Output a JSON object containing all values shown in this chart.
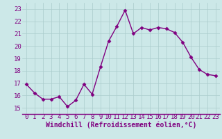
{
  "x": [
    0,
    1,
    2,
    3,
    4,
    5,
    6,
    7,
    8,
    9,
    10,
    11,
    12,
    13,
    14,
    15,
    16,
    17,
    18,
    19,
    20,
    21,
    22,
    23
  ],
  "y": [
    16.9,
    16.2,
    15.7,
    15.7,
    15.9,
    15.1,
    15.6,
    16.9,
    16.1,
    18.3,
    20.4,
    21.6,
    22.9,
    21.0,
    21.5,
    21.3,
    21.5,
    21.4,
    21.1,
    20.3,
    19.1,
    18.1,
    17.7,
    17.6
  ],
  "line_color": "#800080",
  "marker": "D",
  "marker_size": 2.5,
  "bg_color": "#cce8e8",
  "grid_color": "#aacccc",
  "xlabel": "Windchill (Refroidissement éolien,°C)",
  "xlabel_color": "#800080",
  "xlabel_fontsize": 7,
  "tick_color": "#800080",
  "tick_fontsize": 6.5,
  "ylim": [
    14.5,
    23.5
  ],
  "xlim": [
    -0.5,
    23.5
  ],
  "yticks": [
    15,
    16,
    17,
    18,
    19,
    20,
    21,
    22,
    23
  ],
  "xticks": [
    0,
    1,
    2,
    3,
    4,
    5,
    6,
    7,
    8,
    9,
    10,
    11,
    12,
    13,
    14,
    15,
    16,
    17,
    18,
    19,
    20,
    21,
    22,
    23
  ],
  "spine_color": "#800080",
  "linewidth": 1.0
}
